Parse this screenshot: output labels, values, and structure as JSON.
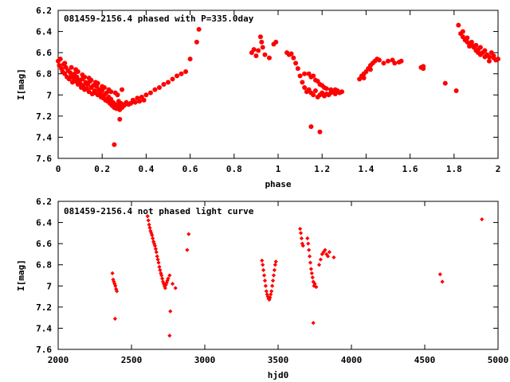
{
  "chart_data": [
    {
      "type": "scatter",
      "title": "081459-2156.4 phased with P=335.0day",
      "xlabel": "phase",
      "ylabel": "I[mag]",
      "xlim": [
        0,
        2
      ],
      "ylim": [
        6.2,
        7.6
      ],
      "y_inverted": true,
      "xticks": [
        0,
        0.2,
        0.4,
        0.6,
        0.8,
        1,
        1.2,
        1.4,
        1.6,
        1.8,
        2
      ],
      "xtick_labels": [
        "0",
        "0.2",
        "0.4",
        "0.6",
        "0.8",
        "1",
        "1.2",
        "1.4",
        "1.6",
        "1.8",
        "2"
      ],
      "yticks": [
        6.2,
        6.4,
        6.6,
        6.8,
        7,
        7.2,
        7.4,
        7.6
      ],
      "ytick_labels": [
        "6.2",
        "6.4",
        "6.6",
        "6.8",
        "7",
        "7.2",
        "7.4",
        "7.6"
      ],
      "grid": false,
      "marker_color": "#ff0000",
      "marker": "filled-circle",
      "points": [
        [
          0.0,
          6.68
        ],
        [
          0.005,
          6.72
        ],
        [
          0.01,
          6.66
        ],
        [
          0.015,
          6.75
        ],
        [
          0.02,
          6.78
        ],
        [
          0.025,
          6.71
        ],
        [
          0.03,
          6.8
        ],
        [
          0.035,
          6.74
        ],
        [
          0.04,
          6.83
        ],
        [
          0.045,
          6.77
        ],
        [
          0.05,
          6.85
        ],
        [
          0.055,
          6.79
        ],
        [
          0.06,
          6.82
        ],
        [
          0.065,
          6.88
        ],
        [
          0.07,
          6.84
        ],
        [
          0.075,
          6.8
        ],
        [
          0.08,
          6.87
        ],
        [
          0.085,
          6.83
        ],
        [
          0.09,
          6.9
        ],
        [
          0.095,
          6.86
        ],
        [
          0.1,
          6.89
        ],
        [
          0.105,
          6.93
        ],
        [
          0.11,
          6.85
        ],
        [
          0.115,
          6.91
        ],
        [
          0.12,
          6.95
        ],
        [
          0.125,
          6.88
        ],
        [
          0.13,
          6.94
        ],
        [
          0.135,
          6.9
        ],
        [
          0.14,
          6.97
        ],
        [
          0.145,
          6.87
        ],
        [
          0.15,
          6.93
        ],
        [
          0.155,
          6.99
        ],
        [
          0.16,
          6.91
        ],
        [
          0.165,
          6.96
        ],
        [
          0.17,
          6.98
        ],
        [
          0.175,
          6.92
        ],
        [
          0.18,
          7.0
        ],
        [
          0.185,
          6.95
        ],
        [
          0.19,
          6.99
        ],
        [
          0.195,
          7.02
        ],
        [
          0.2,
          6.96
        ],
        [
          0.205,
          7.03
        ],
        [
          0.21,
          7.0
        ],
        [
          0.215,
          7.05
        ],
        [
          0.22,
          6.98
        ],
        [
          0.225,
          7.06
        ],
        [
          0.23,
          7.02
        ],
        [
          0.235,
          7.08
        ],
        [
          0.24,
          7.04
        ],
        [
          0.245,
          7.1
        ],
        [
          0.25,
          7.07
        ],
        [
          0.255,
          7.12
        ],
        [
          0.26,
          7.09
        ],
        [
          0.265,
          7.13
        ],
        [
          0.27,
          7.1
        ],
        [
          0.275,
          7.06
        ],
        [
          0.28,
          7.11
        ],
        [
          0.285,
          7.08
        ],
        [
          0.29,
          7.12
        ],
        [
          0.295,
          7.09
        ],
        [
          0.3,
          7.1
        ],
        [
          0.31,
          7.07
        ],
        [
          0.32,
          7.09
        ],
        [
          0.33,
          7.08
        ],
        [
          0.34,
          7.05
        ],
        [
          0.35,
          7.07
        ],
        [
          0.36,
          7.03
        ],
        [
          0.37,
          7.06
        ],
        [
          0.38,
          7.02
        ],
        [
          0.39,
          7.05
        ],
        [
          0.4,
          7.0
        ],
        [
          0.42,
          6.98
        ],
        [
          0.44,
          6.95
        ],
        [
          0.46,
          6.93
        ],
        [
          0.48,
          6.9
        ],
        [
          0.5,
          6.88
        ],
        [
          0.52,
          6.85
        ],
        [
          0.54,
          6.82
        ],
        [
          0.56,
          6.8
        ],
        [
          0.58,
          6.78
        ],
        [
          0.06,
          6.74
        ],
        [
          0.09,
          6.78
        ],
        [
          0.12,
          6.83
        ],
        [
          0.15,
          6.86
        ],
        [
          0.18,
          6.89
        ],
        [
          0.21,
          6.93
        ],
        [
          0.24,
          6.97
        ],
        [
          0.03,
          6.7
        ],
        [
          0.27,
          7.0
        ],
        [
          0.29,
          6.95
        ],
        [
          0.08,
          6.76
        ],
        [
          0.11,
          6.81
        ],
        [
          0.14,
          6.84
        ],
        [
          0.17,
          6.88
        ],
        [
          0.2,
          6.92
        ],
        [
          0.23,
          6.95
        ],
        [
          0.26,
          6.98
        ],
        [
          0.28,
          7.14
        ],
        [
          0.22,
          7.04
        ],
        [
          0.19,
          6.96
        ],
        [
          0.255,
          7.47
        ],
        [
          0.28,
          7.23
        ],
        [
          0.6,
          6.66
        ],
        [
          0.63,
          6.5
        ],
        [
          0.64,
          6.38
        ],
        [
          0.88,
          6.6
        ],
        [
          0.89,
          6.57
        ],
        [
          0.9,
          6.63
        ],
        [
          0.91,
          6.58
        ],
        [
          0.92,
          6.45
        ],
        [
          0.925,
          6.5
        ],
        [
          0.93,
          6.55
        ],
        [
          0.94,
          6.62
        ],
        [
          0.96,
          6.65
        ],
        [
          0.98,
          6.52
        ],
        [
          0.99,
          6.5
        ],
        [
          1.04,
          6.6
        ],
        [
          1.05,
          6.62
        ],
        [
          1.06,
          6.61
        ],
        [
          1.07,
          6.65
        ],
        [
          1.08,
          6.7
        ],
        [
          1.09,
          6.75
        ],
        [
          1.1,
          6.82
        ],
        [
          1.11,
          6.88
        ],
        [
          1.12,
          6.93
        ],
        [
          1.13,
          6.97
        ],
        [
          1.14,
          6.95
        ],
        [
          1.15,
          6.98
        ],
        [
          1.16,
          7.0
        ],
        [
          1.17,
          6.96
        ],
        [
          1.18,
          7.02
        ],
        [
          1.19,
          7.0
        ],
        [
          1.2,
          6.98
        ],
        [
          1.21,
          7.01
        ],
        [
          1.22,
          6.99
        ],
        [
          1.23,
          7.0
        ],
        [
          1.24,
          6.98
        ],
        [
          1.25,
          6.97
        ],
        [
          1.26,
          6.99
        ],
        [
          1.27,
          6.96
        ],
        [
          1.28,
          6.98
        ],
        [
          1.29,
          6.97
        ],
        [
          1.12,
          6.8
        ],
        [
          1.14,
          6.8
        ],
        [
          1.15,
          6.83
        ],
        [
          1.16,
          6.82
        ],
        [
          1.17,
          6.86
        ],
        [
          1.18,
          6.87
        ],
        [
          1.19,
          6.9
        ],
        [
          1.2,
          6.91
        ],
        [
          1.21,
          6.93
        ],
        [
          1.22,
          6.94
        ],
        [
          1.24,
          6.95
        ],
        [
          1.26,
          6.95
        ],
        [
          1.15,
          7.3
        ],
        [
          1.19,
          7.35
        ],
        [
          1.37,
          6.85
        ],
        [
          1.38,
          6.82
        ],
        [
          1.39,
          6.8
        ],
        [
          1.4,
          6.78
        ],
        [
          1.41,
          6.75
        ],
        [
          1.42,
          6.72
        ],
        [
          1.43,
          6.7
        ],
        [
          1.44,
          6.68
        ],
        [
          1.45,
          6.66
        ],
        [
          1.46,
          6.67
        ],
        [
          1.48,
          6.7
        ],
        [
          1.5,
          6.68
        ],
        [
          1.52,
          6.67
        ],
        [
          1.53,
          6.7
        ],
        [
          1.55,
          6.69
        ],
        [
          1.56,
          6.68
        ],
        [
          1.39,
          6.84
        ],
        [
          1.42,
          6.76
        ],
        [
          1.65,
          6.74
        ],
        [
          1.66,
          6.75
        ],
        [
          1.66,
          6.73
        ],
        [
          1.76,
          6.89
        ],
        [
          1.81,
          6.96
        ],
        [
          1.82,
          6.34
        ],
        [
          1.83,
          6.42
        ],
        [
          1.84,
          6.45
        ],
        [
          1.85,
          6.48
        ],
        [
          1.86,
          6.5
        ],
        [
          1.87,
          6.52
        ],
        [
          1.88,
          6.5
        ],
        [
          1.89,
          6.55
        ],
        [
          1.9,
          6.53
        ],
        [
          1.91,
          6.57
        ],
        [
          1.92,
          6.55
        ],
        [
          1.93,
          6.6
        ],
        [
          1.94,
          6.58
        ],
        [
          1.95,
          6.62
        ],
        [
          1.96,
          6.64
        ],
        [
          1.97,
          6.6
        ],
        [
          1.98,
          6.65
        ],
        [
          1.99,
          6.67
        ],
        [
          2.0,
          6.66
        ],
        [
          1.84,
          6.4
        ],
        [
          1.86,
          6.46
        ],
        [
          1.88,
          6.52
        ],
        [
          1.9,
          6.58
        ],
        [
          1.92,
          6.62
        ],
        [
          1.94,
          6.64
        ],
        [
          1.96,
          6.68
        ],
        [
          1.98,
          6.63
        ],
        [
          1.87,
          6.54
        ],
        [
          1.91,
          6.6
        ]
      ]
    },
    {
      "type": "scatter",
      "title": "081459-2156.4 not phased light curve",
      "xlabel": "hjd0",
      "ylabel": "I[mag]",
      "xlim": [
        2000,
        5000
      ],
      "ylim": [
        6.2,
        7.6
      ],
      "y_inverted": true,
      "xticks": [
        2000,
        2500,
        3000,
        3500,
        4000,
        4500,
        5000
      ],
      "xtick_labels": [
        "2000",
        "2500",
        "3000",
        "3500",
        "4000",
        "4500",
        "5000"
      ],
      "yticks": [
        6.2,
        6.4,
        6.6,
        6.8,
        7,
        7.2,
        7.4,
        7.6
      ],
      "ytick_labels": [
        "6.2",
        "6.4",
        "6.6",
        "6.8",
        "7",
        "7.2",
        "7.4",
        "7.6"
      ],
      "grid": false,
      "marker_color": "#ff0000",
      "marker": "diamond",
      "points": [
        [
          2370,
          6.88
        ],
        [
          2375,
          6.94
        ],
        [
          2380,
          6.96
        ],
        [
          2385,
          6.98
        ],
        [
          2390,
          7.0
        ],
        [
          2395,
          7.03
        ],
        [
          2400,
          7.05
        ],
        [
          2388,
          7.31
        ],
        [
          2610,
          6.34
        ],
        [
          2615,
          6.38
        ],
        [
          2620,
          6.42
        ],
        [
          2625,
          6.45
        ],
        [
          2630,
          6.48
        ],
        [
          2635,
          6.5
        ],
        [
          2640,
          6.52
        ],
        [
          2645,
          6.55
        ],
        [
          2650,
          6.58
        ],
        [
          2655,
          6.6
        ],
        [
          2660,
          6.62
        ],
        [
          2665,
          6.65
        ],
        [
          2670,
          6.68
        ],
        [
          2675,
          6.72
        ],
        [
          2680,
          6.75
        ],
        [
          2685,
          6.78
        ],
        [
          2690,
          6.82
        ],
        [
          2695,
          6.85
        ],
        [
          2700,
          6.88
        ],
        [
          2705,
          6.9
        ],
        [
          2710,
          6.93
        ],
        [
          2715,
          6.96
        ],
        [
          2720,
          6.98
        ],
        [
          2725,
          7.0
        ],
        [
          2730,
          7.02
        ],
        [
          2735,
          6.99
        ],
        [
          2740,
          6.97
        ],
        [
          2745,
          6.95
        ],
        [
          2750,
          6.93
        ],
        [
          2760,
          6.9
        ],
        [
          2780,
          6.98
        ],
        [
          2800,
          7.02
        ],
        [
          2765,
          7.24
        ],
        [
          2760,
          7.47
        ],
        [
          2880,
          6.66
        ],
        [
          2890,
          6.51
        ],
        [
          3390,
          6.76
        ],
        [
          3395,
          6.8
        ],
        [
          3400,
          6.85
        ],
        [
          3405,
          6.9
        ],
        [
          3410,
          6.95
        ],
        [
          3415,
          7.0
        ],
        [
          3420,
          7.05
        ],
        [
          3425,
          7.08
        ],
        [
          3430,
          7.1
        ],
        [
          3435,
          7.12
        ],
        [
          3440,
          7.13
        ],
        [
          3445,
          7.11
        ],
        [
          3450,
          7.08
        ],
        [
          3455,
          7.05
        ],
        [
          3460,
          7.0
        ],
        [
          3465,
          6.95
        ],
        [
          3470,
          6.9
        ],
        [
          3475,
          6.85
        ],
        [
          3480,
          6.8
        ],
        [
          3485,
          6.77
        ],
        [
          3650,
          6.46
        ],
        [
          3655,
          6.5
        ],
        [
          3660,
          6.55
        ],
        [
          3665,
          6.6
        ],
        [
          3670,
          6.62
        ],
        [
          3700,
          6.55
        ],
        [
          3705,
          6.6
        ],
        [
          3710,
          6.66
        ],
        [
          3715,
          6.72
        ],
        [
          3720,
          6.78
        ],
        [
          3725,
          6.84
        ],
        [
          3730,
          6.88
        ],
        [
          3735,
          6.92
        ],
        [
          3740,
          6.96
        ],
        [
          3745,
          7.0
        ],
        [
          3750,
          6.98
        ],
        [
          3760,
          7.01
        ],
        [
          3740,
          7.35
        ],
        [
          3780,
          6.8
        ],
        [
          3790,
          6.75
        ],
        [
          3800,
          6.7
        ],
        [
          3810,
          6.68
        ],
        [
          3820,
          6.66
        ],
        [
          3830,
          6.7
        ],
        [
          3840,
          6.72
        ],
        [
          3850,
          6.68
        ],
        [
          3880,
          6.73
        ],
        [
          4605,
          6.89
        ],
        [
          4620,
          6.96
        ],
        [
          4890,
          6.37
        ]
      ]
    }
  ]
}
